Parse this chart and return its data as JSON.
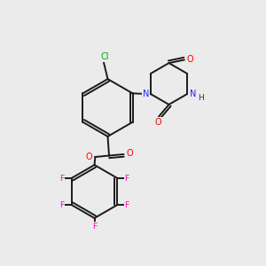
{
  "background_color": "#ebebeb",
  "bond_color": "#1a1a1a",
  "atom_colors": {
    "N": "#2222ff",
    "O": "#ff0000",
    "F": "#ff00cc",
    "Cl": "#00aa00",
    "C": "#000000",
    "H": "#333333"
  },
  "bond_lw": 1.4,
  "font_size": 7.0
}
